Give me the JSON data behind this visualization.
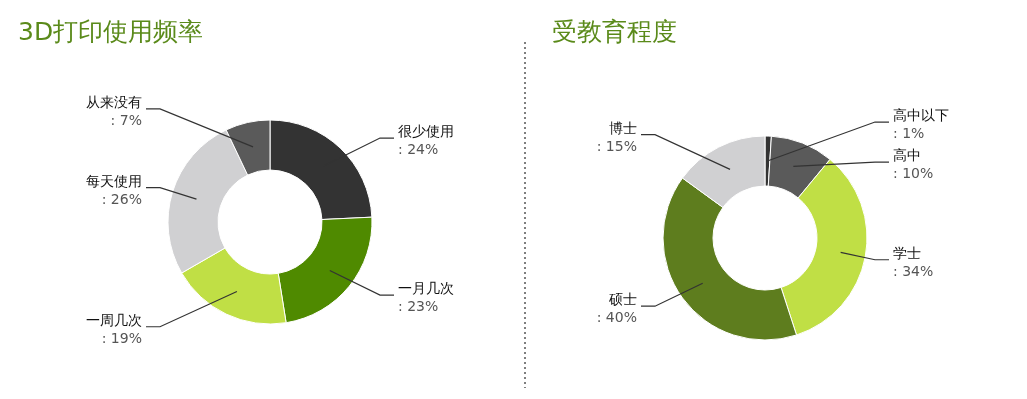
{
  "chart_data": [
    {
      "type": "donut",
      "title": "3D打印使用频率",
      "categories": [
        "很少使用",
        "一月几次",
        "一周几次",
        "每天使用",
        "从来没有"
      ],
      "values": [
        24,
        23,
        19,
        26,
        7
      ],
      "colors": [
        "#333333",
        "#4f8a00",
        "#c0df45",
        "#d0d0d2",
        "#5a5a5a"
      ],
      "value_labels": [
        ": 24%",
        ": 23%",
        ": 19%",
        ": 26%",
        ": 7%"
      ]
    },
    {
      "type": "donut",
      "title": "受教育程度",
      "categories": [
        "高中以下",
        "高中",
        "学士",
        "硕士",
        "博士"
      ],
      "values": [
        1,
        10,
        34,
        40,
        15
      ],
      "colors": [
        "#333333",
        "#5a5a5a",
        "#c0df45",
        "#5e7d1e",
        "#d0d0d2"
      ],
      "value_labels": [
        ": 1%",
        ": 10%",
        ": 34%",
        ": 40%",
        ": 15%"
      ]
    }
  ]
}
